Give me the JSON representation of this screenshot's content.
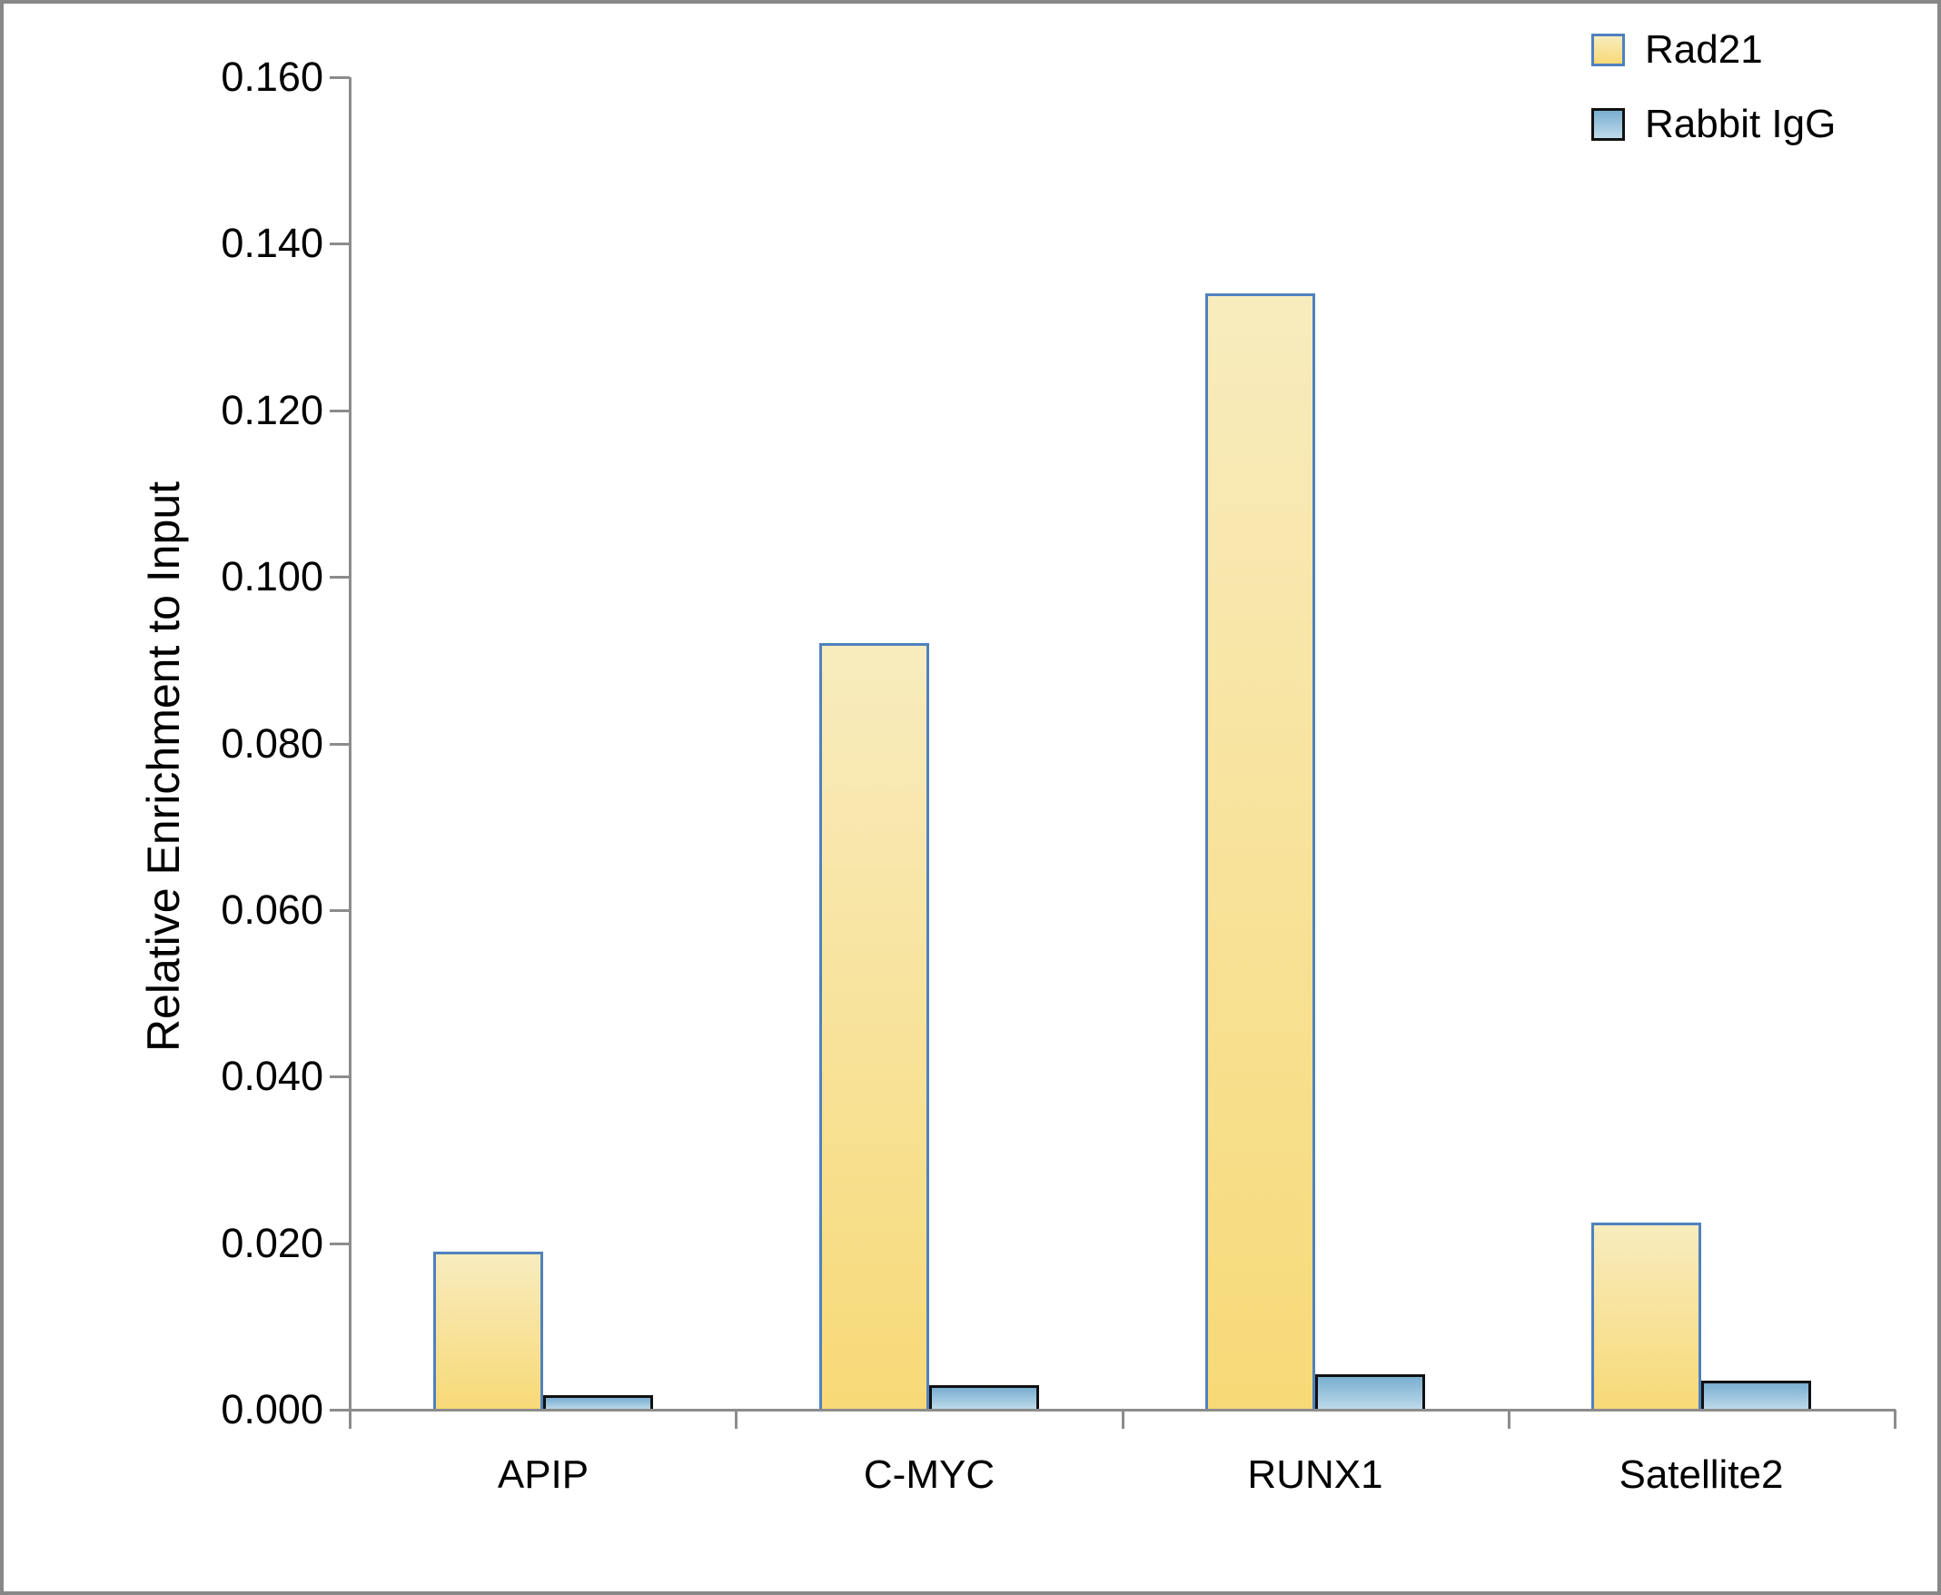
{
  "chart_data": {
    "type": "bar",
    "ylabel": "Relative Enrichment to Input",
    "categories": [
      "APIP",
      "C-MYC",
      "RUNX1",
      "Satellite2"
    ],
    "series": [
      {
        "name": "Rad21",
        "values": [
          0.019,
          0.092,
          0.134,
          0.0225
        ],
        "fill_top": "#F8ECBE",
        "fill_bottom": "#F7D977",
        "border": "#4F81BD"
      },
      {
        "name": "Rabbit IgG",
        "values": [
          0.0017,
          0.0029,
          0.0043,
          0.0035
        ],
        "fill_top": "#79AED1",
        "fill_bottom": "#BFDAEA",
        "border": "#111111"
      }
    ],
    "ylim": [
      0,
      0.16
    ],
    "ytick_step": 0.02,
    "ytick_labels": [
      "0.000",
      "0.020",
      "0.040",
      "0.060",
      "0.080",
      "0.100",
      "0.120",
      "0.140",
      "0.160"
    ],
    "grid": false,
    "legend_position": "top-right"
  },
  "colors": {
    "axis": "#8C8C8C",
    "frame_border": "#878787",
    "background": "#FFFFFF",
    "text": "#000000"
  }
}
